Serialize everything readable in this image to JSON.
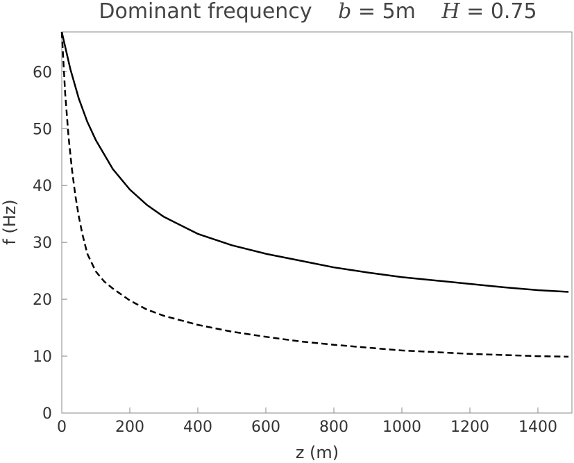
{
  "chart_data": {
    "type": "line",
    "title": {
      "prefix": "Dominant frequency",
      "b_symbol": "b",
      "b_value": " = 5m",
      "h_symbol": "H",
      "h_value": " = 0.75"
    },
    "xlabel": "z (m)",
    "ylabel": "f (Hz)",
    "xlim": [
      0,
      1500
    ],
    "ylim": [
      0,
      67
    ],
    "xticks": [
      0,
      200,
      400,
      600,
      800,
      1000,
      1200,
      1400
    ],
    "yticks": [
      0,
      10,
      20,
      30,
      40,
      50,
      60
    ],
    "grid": false,
    "legend": "none",
    "series": [
      {
        "style": "solid",
        "color": "#000000",
        "x": [
          0,
          25,
          50,
          75,
          100,
          150,
          200,
          250,
          300,
          400,
          500,
          600,
          700,
          800,
          900,
          1000,
          1100,
          1200,
          1300,
          1400,
          1490
        ],
        "y": [
          67,
          60.5,
          55.3,
          51.2,
          48.0,
          42.9,
          39.3,
          36.6,
          34.5,
          31.5,
          29.5,
          28.0,
          26.8,
          25.6,
          24.7,
          23.9,
          23.3,
          22.7,
          22.1,
          21.6,
          21.3
        ]
      },
      {
        "style": "dashed",
        "color": "#000000",
        "x": [
          0,
          10,
          20,
          30,
          40,
          50,
          60,
          75,
          100,
          125,
          150,
          200,
          250,
          300,
          400,
          500,
          600,
          700,
          800,
          900,
          1000,
          1100,
          1200,
          1300,
          1400,
          1490
        ],
        "y": [
          67,
          56.2,
          48.5,
          42.8,
          38.2,
          34.6,
          31.6,
          28.0,
          24.9,
          23.1,
          21.9,
          19.8,
          18.2,
          17.1,
          15.5,
          14.3,
          13.4,
          12.6,
          12.0,
          11.5,
          11.0,
          10.7,
          10.4,
          10.2,
          10.0,
          9.9
        ]
      }
    ]
  }
}
